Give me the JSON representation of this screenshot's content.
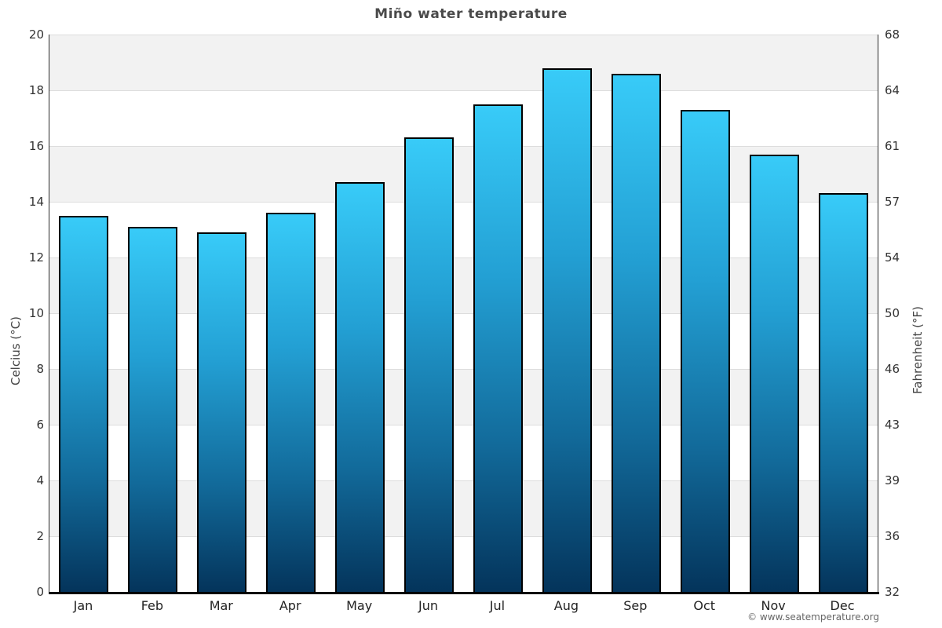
{
  "title": "Miño water temperature",
  "watermark": "© www.seatemperature.org",
  "axes": {
    "left_label": "Celcius (°C)",
    "right_label": "Fahrenheit (°F)"
  },
  "chart_data": {
    "type": "bar",
    "title": "Miño water temperature",
    "categories": [
      "Jan",
      "Feb",
      "Mar",
      "Apr",
      "May",
      "Jun",
      "Jul",
      "Aug",
      "Sep",
      "Oct",
      "Nov",
      "Dec"
    ],
    "values": [
      13.5,
      13.1,
      12.9,
      13.6,
      14.7,
      16.3,
      17.5,
      18.8,
      18.6,
      17.3,
      15.7,
      14.3
    ],
    "series_name": "Water temperature",
    "xlabel": "",
    "ylabel_left": "Celcius (°C)",
    "ylabel_right": "Fahrenheit (°F)",
    "ylim_celsius": [
      0,
      20
    ],
    "yticks_celsius": [
      0,
      2,
      4,
      6,
      8,
      10,
      12,
      14,
      16,
      18,
      20
    ],
    "yticks_fahrenheit": [
      32,
      36,
      39,
      43,
      46,
      50,
      54,
      57,
      61,
      64,
      68
    ],
    "grid": true,
    "legend": "none",
    "colors": {
      "bar_gradient_top": "#38cbf8",
      "bar_gradient_bottom": "#04345b",
      "bar_border": "#000000",
      "band_shade": "#f2f2f2",
      "band_plain": "#ffffff",
      "gridline": "#dddddd",
      "axis_line": "#000000",
      "title_text": "#4a4a4a",
      "tick_text": "#333333",
      "watermark_text": "#666666"
    }
  }
}
